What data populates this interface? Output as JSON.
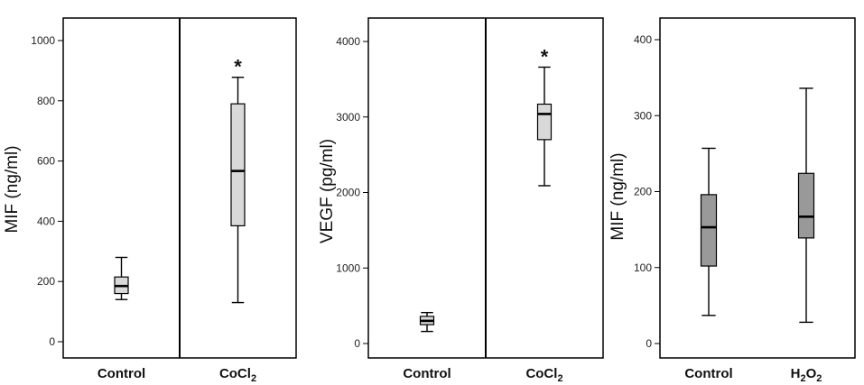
{
  "chart_data": [
    {
      "type": "boxplot",
      "ylabel": "MIF (ng/ml)",
      "ylim": [
        0,
        1000
      ],
      "yticks": [
        0,
        200,
        400,
        600,
        800,
        1000
      ],
      "grid": false,
      "divider": true,
      "categories": [
        {
          "label": "Control",
          "sub": "",
          "whisker_low": 140,
          "q1": 160,
          "median": 185,
          "q3": 215,
          "whisker_high": 280,
          "significance": ""
        },
        {
          "label": "CoCl",
          "sub": "2",
          "whisker_low": 130,
          "q1": 385,
          "median": 567,
          "q3": 790,
          "whisker_high": 878,
          "significance": "*"
        }
      ],
      "box_fill": "#d9d9d9"
    },
    {
      "type": "boxplot",
      "ylabel": "VEGF (pg/ml)",
      "ylim": [
        0,
        4000
      ],
      "yticks": [
        0,
        1000,
        2000,
        3000,
        4000
      ],
      "grid": false,
      "divider": true,
      "categories": [
        {
          "label": "Control",
          "sub": "",
          "whisker_low": 160,
          "q1": 250,
          "median": 300,
          "q3": 360,
          "whisker_high": 410,
          "significance": ""
        },
        {
          "label": "CoCl",
          "sub": "2",
          "whisker_low": 2090,
          "q1": 2700,
          "median": 3040,
          "q3": 3170,
          "whisker_high": 3660,
          "significance": "*"
        }
      ],
      "box_fill": "#d9d9d9"
    },
    {
      "type": "boxplot",
      "ylabel": "MIF (ng/ml)",
      "ylim": [
        0,
        400
      ],
      "yticks": [
        0,
        100,
        200,
        300,
        400
      ],
      "grid": false,
      "divider": false,
      "categories": [
        {
          "label": "Control",
          "sub": "",
          "whisker_low": 37,
          "q1": 102,
          "median": 153,
          "q3": 196,
          "whisker_high": 257,
          "significance": ""
        },
        {
          "label": "H",
          "sub": "2",
          "label_suffix": "O",
          "sub2": "2",
          "whisker_low": 28,
          "q1": 139,
          "median": 167,
          "q3": 224,
          "whisker_high": 336,
          "significance": ""
        }
      ],
      "box_fill": "#999999"
    }
  ]
}
